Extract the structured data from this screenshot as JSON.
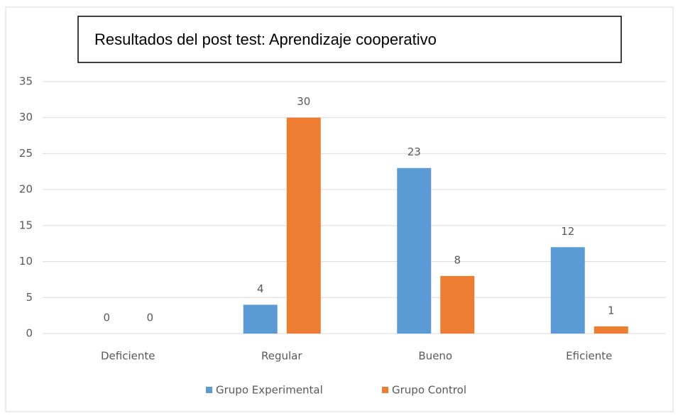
{
  "chart_data": {
    "type": "bar",
    "title": "Resultados del post test: Aprendizaje cooperativo",
    "categories": [
      "Deficiente",
      "Regular",
      "Bueno",
      "Eficiente"
    ],
    "series": [
      {
        "name": "Grupo Experimental",
        "color": "#5b9bd5",
        "values": [
          0,
          4,
          23,
          12
        ]
      },
      {
        "name": "Grupo Control",
        "color": "#ed7d31",
        "values": [
          0,
          30,
          8,
          1
        ]
      }
    ],
    "ylim": [
      0,
      35
    ],
    "yticks": [
      0,
      5,
      10,
      15,
      20,
      25,
      30,
      35
    ],
    "grid": true,
    "legend": "bottom"
  }
}
